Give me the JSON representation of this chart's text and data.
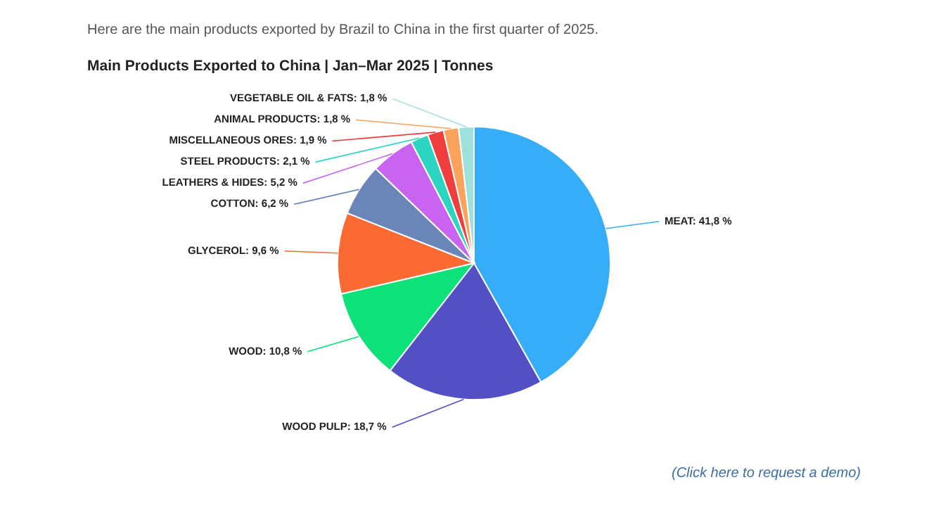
{
  "chart_data": {
    "type": "pie",
    "subtitle": "Here are the main products exported by Brazil to China in the first quarter of 2025.",
    "title": "Main Products Exported to China | Jan–Mar 2025 | Tonnes",
    "categories": [
      "MEAT",
      "WOOD PULP",
      "WOOD",
      "GLYCEROL",
      "COTTON",
      "LEATHERS & HIDES",
      "STEEL PRODUCTS",
      "MISCELLANEOUS ORES",
      "ANIMAL PRODUCTS",
      "VEGETABLE OIL & FATS"
    ],
    "values": [
      41.8,
      18.7,
      10.8,
      9.6,
      6.2,
      5.2,
      2.1,
      1.9,
      1.8,
      1.8
    ],
    "value_labels": [
      "41,8 %",
      "18,7 %",
      "10,8 %",
      "9,6 %",
      "6,2 %",
      "5,2 %",
      "2,1 %",
      "1,9 %",
      "1,8 %",
      "1,8 %"
    ],
    "colors": [
      "#35adf8",
      "#5250c4",
      "#0ee07a",
      "#fb6a33",
      "#6a86b8",
      "#c964f0",
      "#2bd5c2",
      "#f03e3e",
      "#fba35c",
      "#9ee0dc"
    ],
    "annotations": [
      "(Click here to request a demo)"
    ]
  }
}
